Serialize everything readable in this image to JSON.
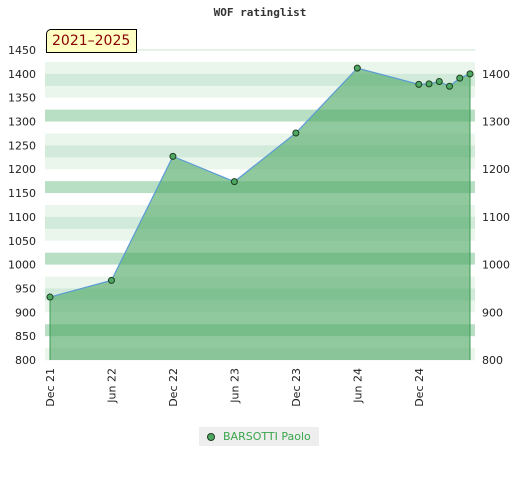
{
  "chart_data": {
    "type": "area",
    "title": "WOF ratinglist",
    "badge": "2021–2025",
    "ylim": [
      800,
      1450
    ],
    "yticks_left": [
      800,
      850,
      900,
      950,
      1000,
      1050,
      1100,
      1150,
      1200,
      1250,
      1300,
      1350,
      1400,
      1450
    ],
    "yticks_right": [
      800,
      900,
      1000,
      1100,
      1200,
      1300,
      1400
    ],
    "xlim": [
      "2021-12",
      "2025-05"
    ],
    "xticks": [
      {
        "date": "2021-12",
        "label": "Dec 21"
      },
      {
        "date": "2022-06",
        "label": "Jun 22"
      },
      {
        "date": "2022-12",
        "label": "Dec 22"
      },
      {
        "date": "2023-06",
        "label": "Jun 23"
      },
      {
        "date": "2023-12",
        "label": "Dec 23"
      },
      {
        "date": "2024-06",
        "label": "Jun 24"
      },
      {
        "date": "2024-12",
        "label": "Dec 24"
      }
    ],
    "series": [
      {
        "name": "BARSOTTI Paolo",
        "color": "#4ea864",
        "line_color": "#5a9bd5",
        "points": [
          {
            "x": "2021-12",
            "y": 932
          },
          {
            "x": "2022-06",
            "y": 967
          },
          {
            "x": "2022-12",
            "y": 1227
          },
          {
            "x": "2023-06",
            "y": 1174
          },
          {
            "x": "2023-12",
            "y": 1276
          },
          {
            "x": "2024-06",
            "y": 1412
          },
          {
            "x": "2024-12",
            "y": 1378
          },
          {
            "x": "2025-01",
            "y": 1379
          },
          {
            "x": "2025-02",
            "y": 1384
          },
          {
            "x": "2025-03",
            "y": 1374
          },
          {
            "x": "2025-04",
            "y": 1391
          },
          {
            "x": "2025-05",
            "y": 1400
          }
        ]
      }
    ],
    "grid": "alternating green bands",
    "legend_position": "bottom-center"
  }
}
